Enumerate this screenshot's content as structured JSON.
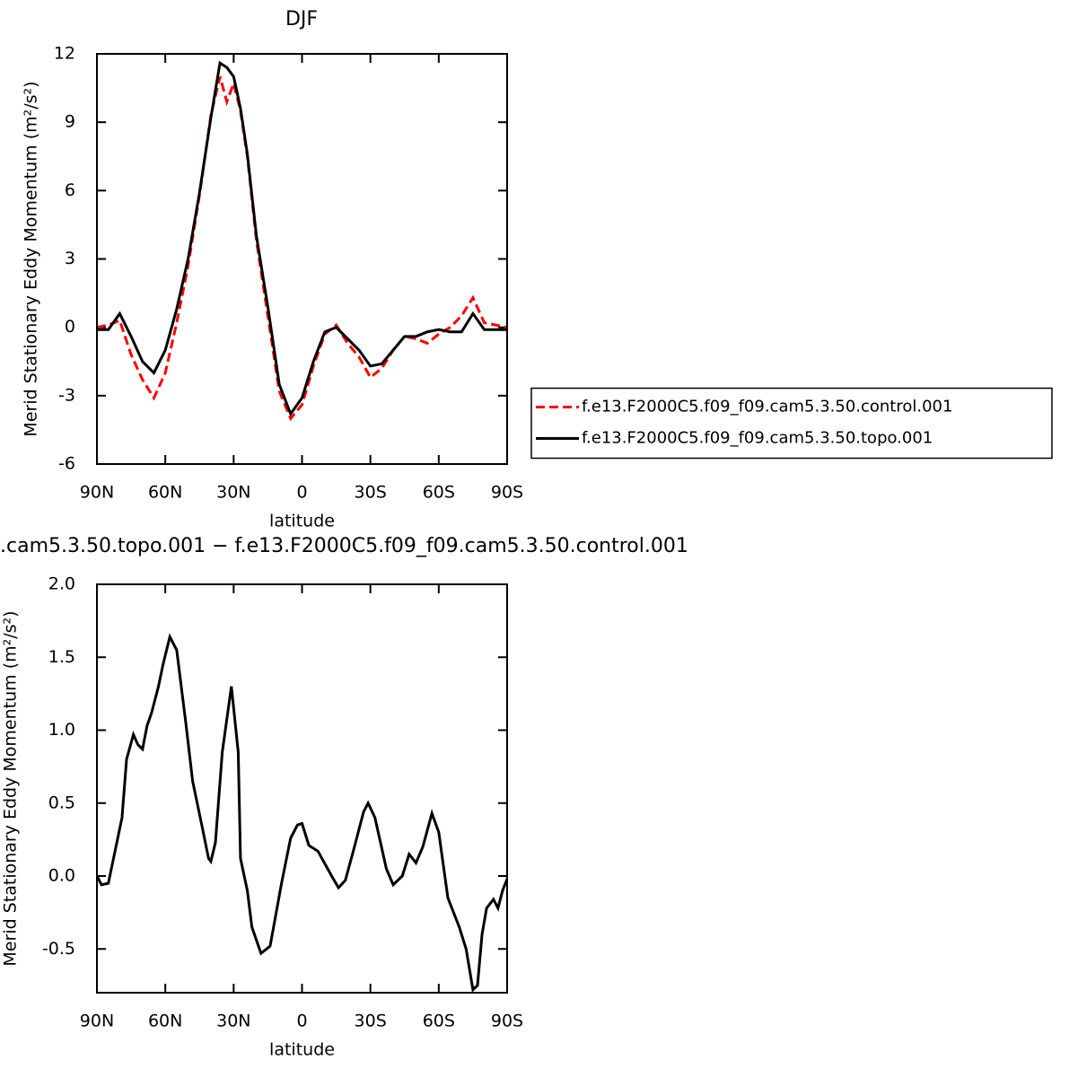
{
  "chart_data": [
    {
      "type": "line",
      "title": "DJF",
      "ylabel": "Merid Stationary Eddy Momentum (m²/s²)",
      "xlabel": "latitude",
      "x": [
        90,
        85,
        80,
        75,
        70,
        65,
        60,
        55,
        50,
        45,
        40,
        36,
        33,
        30,
        27,
        24,
        20,
        15,
        10,
        5,
        0,
        -5,
        -10,
        -15,
        -20,
        -25,
        -30,
        -35,
        -40,
        -45,
        -50,
        -55,
        -60,
        -65,
        -70,
        -75,
        -80,
        -85,
        -90
      ],
      "series": [
        {
          "name": "f.e13.F2000C5.f09_f09.cam5.3.50.control.001",
          "color": "#ff0000",
          "linestyle": "dashed",
          "values": [
            0,
            0.1,
            0.3,
            -1.2,
            -2.3,
            -3.1,
            -2.0,
            0.2,
            2.7,
            5.8,
            9.3,
            11.0,
            9.9,
            10.7,
            9.5,
            7.5,
            3.8,
            0.5,
            -2.8,
            -4.0,
            -3.4,
            -1.7,
            -0.3,
            0.1,
            -0.7,
            -1.3,
            -2.2,
            -1.8,
            -1.0,
            -0.4,
            -0.5,
            -0.7,
            -0.3,
            0.0,
            0.5,
            1.3,
            0.2,
            0.1,
            0.0
          ]
        },
        {
          "name": "f.e13.F2000C5.f09_f09.cam5.3.50.topo.001",
          "color": "#000000",
          "linestyle": "solid",
          "values": [
            -0.1,
            -0.1,
            0.6,
            -0.4,
            -1.5,
            -2.0,
            -1.0,
            0.8,
            3.0,
            5.9,
            9.2,
            11.6,
            11.4,
            11.0,
            9.6,
            7.6,
            4.0,
            0.9,
            -2.5,
            -3.8,
            -3.1,
            -1.5,
            -0.2,
            0.0,
            -0.5,
            -1.0,
            -1.7,
            -1.6,
            -1.0,
            -0.4,
            -0.4,
            -0.2,
            -0.1,
            -0.2,
            -0.2,
            0.6,
            -0.1,
            -0.1,
            -0.1
          ]
        }
      ],
      "xlim": [
        90,
        -90
      ],
      "xticks": [
        {
          "value": 90,
          "label": "90N"
        },
        {
          "value": 60,
          "label": "60N"
        },
        {
          "value": 30,
          "label": "30N"
        },
        0,
        {
          "value": -30,
          "label": "30S"
        },
        {
          "value": -60,
          "label": "60S"
        },
        {
          "value": -90,
          "label": "90S"
        }
      ],
      "ylim": [
        -6,
        12
      ],
      "yticks": [
        -6,
        -3,
        0,
        3,
        6,
        9,
        12
      ],
      "legend": "right"
    },
    {
      "type": "line",
      "title": ".cam5.3.50.topo.001 − f.e13.F2000C5.f09_f09.cam5.3.50.control.001",
      "ylabel": "Merid Stationary Eddy Momentum (m²/s²)",
      "xlabel": "latitude",
      "x": [
        90,
        88,
        85,
        83,
        79,
        77,
        74,
        72,
        70,
        68,
        66,
        63,
        61,
        58,
        55,
        51,
        48,
        44,
        41,
        40,
        38,
        35,
        31,
        28,
        27,
        24,
        22,
        18,
        14,
        9,
        5,
        2,
        0,
        -3,
        -7,
        -13,
        -16,
        -19,
        -23,
        -27,
        -29,
        -32,
        -37,
        -40,
        -44,
        -47,
        -50,
        -53,
        -57,
        -60,
        -64,
        -69,
        -72,
        -75,
        -77,
        -79,
        -81,
        -84,
        -86,
        -88,
        -90
      ],
      "series": [
        {
          "color": "#000000",
          "linestyle": "solid",
          "values": [
            0,
            -0.06,
            -0.05,
            0.1,
            0.4,
            0.8,
            0.97,
            0.9,
            0.87,
            1.03,
            1.12,
            1.3,
            1.45,
            1.64,
            1.55,
            1.05,
            0.65,
            0.35,
            0.12,
            0.1,
            0.23,
            0.85,
            1.3,
            0.85,
            0.12,
            -0.1,
            -0.35,
            -0.53,
            -0.48,
            -0.05,
            0.26,
            0.35,
            0.36,
            0.21,
            0.17,
            0,
            -0.08,
            -0.03,
            0.2,
            0.44,
            0.5,
            0.4,
            0.05,
            -0.06,
            0,
            0.15,
            0.09,
            0.2,
            0.43,
            0.3,
            -0.15,
            -0.35,
            -0.5,
            -0.78,
            -0.75,
            -0.4,
            -0.22,
            -0.16,
            -0.22,
            -0.1,
            -0.02
          ]
        }
      ],
      "xlim": [
        90,
        -90
      ],
      "xticks": [
        {
          "value": 90,
          "label": "90N"
        },
        {
          "value": 60,
          "label": "60N"
        },
        {
          "value": 30,
          "label": "30N"
        },
        0,
        {
          "value": -30,
          "label": "30S"
        },
        {
          "value": -60,
          "label": "60S"
        },
        {
          "value": -90,
          "label": "90S"
        }
      ],
      "ylim": [
        -0.8,
        2.0
      ],
      "yticks": [
        -0.5,
        {
          "value": 0,
          "label": "0.0"
        },
        0.5,
        {
          "value": 1,
          "label": "1.0"
        },
        1.5,
        {
          "value": 2,
          "label": "2.0"
        }
      ]
    }
  ]
}
